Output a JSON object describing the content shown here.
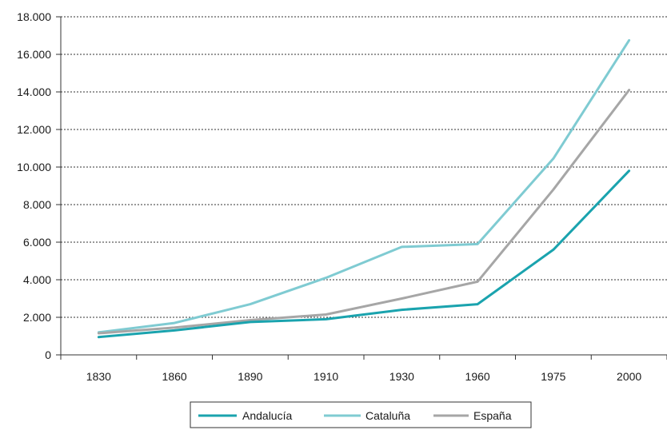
{
  "chart_data": {
    "type": "line",
    "categories": [
      "1830",
      "1860",
      "1890",
      "1910",
      "1930",
      "1960",
      "1975",
      "2000"
    ],
    "ylim": [
      0,
      18000
    ],
    "yticks": [
      {
        "value": 0,
        "label": "0"
      },
      {
        "value": 2000,
        "label": "2.000"
      },
      {
        "value": 4000,
        "label": "4.000"
      },
      {
        "value": 6000,
        "label": "6.000"
      },
      {
        "value": 8000,
        "label": "8.000"
      },
      {
        "value": 10000,
        "label": "10.000"
      },
      {
        "value": 12000,
        "label": "12.000"
      },
      {
        "value": 14000,
        "label": "14.000"
      },
      {
        "value": 16000,
        "label": "16.000"
      },
      {
        "value": 18000,
        "label": "18.000"
      }
    ],
    "grid": "horizontal dashed",
    "legend_position": "bottom-center",
    "series": [
      {
        "name": "Andalucía",
        "color": "#1aa3ae",
        "values": [
          950,
          1300,
          1750,
          1900,
          2400,
          2700,
          5600,
          9800
        ]
      },
      {
        "name": "Cataluña",
        "color": "#7fcbd2",
        "values": [
          1200,
          1700,
          2700,
          4100,
          5750,
          5900,
          10450,
          16750
        ]
      },
      {
        "name": "España",
        "color": "#a6a6a6",
        "values": [
          1150,
          1450,
          1850,
          2150,
          3000,
          3900,
          8800,
          14100
        ]
      }
    ]
  }
}
